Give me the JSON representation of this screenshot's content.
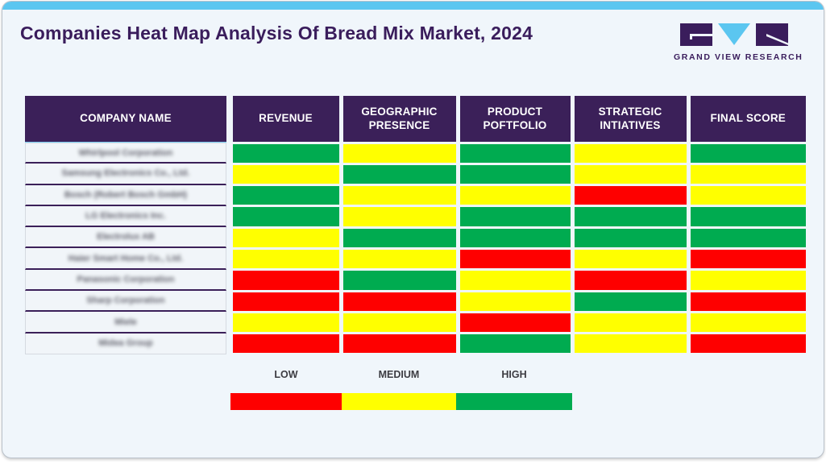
{
  "page": {
    "title": "Companies Heat Map Analysis Of Bread Mix Market, 2024"
  },
  "logo": {
    "brand": "GRAND VIEW RESEARCH"
  },
  "colors": {
    "low": "#fe0000",
    "medium": "#ffff00",
    "high": "#00ab50",
    "header_bg": "#3b2059",
    "accent_blue": "#5bc6f0",
    "brand_purple": "#3a1d5c"
  },
  "table": {
    "columns": [
      "COMPANY NAME",
      "REVENUE",
      "GEOGRAPHIC PRESENCE",
      "PRODUCT POFTFOLIO",
      "STRATEGIC INTIATIVES",
      "FINAL SCORE"
    ],
    "rows": [
      {
        "company": "Whirlpool Corporation",
        "ratings": [
          "high",
          "medium",
          "high",
          "medium",
          "high"
        ]
      },
      {
        "company": "Samsung Electronics Co., Ltd.",
        "ratings": [
          "medium",
          "high",
          "high",
          "medium",
          "medium"
        ]
      },
      {
        "company": "Bosch (Robert Bosch GmbH)",
        "ratings": [
          "high",
          "medium",
          "medium",
          "low",
          "medium"
        ]
      },
      {
        "company": "LG Electronics Inc.",
        "ratings": [
          "high",
          "medium",
          "high",
          "high",
          "high"
        ]
      },
      {
        "company": "Electrolux AB",
        "ratings": [
          "medium",
          "high",
          "high",
          "high",
          "high"
        ]
      },
      {
        "company": "Haier Smart Home Co., Ltd.",
        "ratings": [
          "medium",
          "medium",
          "low",
          "medium",
          "low"
        ]
      },
      {
        "company": "Panasonic Corporation",
        "ratings": [
          "low",
          "high",
          "medium",
          "low",
          "medium"
        ]
      },
      {
        "company": "Sharp Corporation",
        "ratings": [
          "low",
          "low",
          "medium",
          "high",
          "low"
        ]
      },
      {
        "company": "Miele",
        "ratings": [
          "medium",
          "medium",
          "low",
          "medium",
          "medium"
        ]
      },
      {
        "company": "Midea Group",
        "ratings": [
          "low",
          "low",
          "high",
          "medium",
          "low"
        ]
      }
    ]
  },
  "legend": {
    "items": [
      {
        "label": "LOW",
        "color": "#fe0000"
      },
      {
        "label": "MEDIUM",
        "color": "#ffff00"
      },
      {
        "label": "HIGH",
        "color": "#00ab50"
      }
    ]
  },
  "chart_data": {
    "type": "heatmap",
    "title": "Companies Heat Map Analysis Of Bread Mix Market, 2024",
    "columns": [
      "REVENUE",
      "GEOGRAPHIC PRESENCE",
      "PRODUCT POFTFOLIO",
      "STRATEGIC INTIATIVES",
      "FINAL SCORE"
    ],
    "rows": [
      "Whirlpool Corporation",
      "Samsung Electronics Co., Ltd.",
      "Bosch (Robert Bosch GmbH)",
      "LG Electronics Inc.",
      "Electrolux AB",
      "Haier Smart Home Co., Ltd.",
      "Panasonic Corporation",
      "Sharp Corporation",
      "Miele",
      "Midea Group"
    ],
    "values": [
      [
        "high",
        "medium",
        "high",
        "medium",
        "high"
      ],
      [
        "medium",
        "high",
        "high",
        "medium",
        "medium"
      ],
      [
        "high",
        "medium",
        "medium",
        "low",
        "medium"
      ],
      [
        "high",
        "medium",
        "high",
        "high",
        "high"
      ],
      [
        "medium",
        "high",
        "high",
        "high",
        "high"
      ],
      [
        "medium",
        "medium",
        "low",
        "medium",
        "low"
      ],
      [
        "low",
        "high",
        "medium",
        "low",
        "medium"
      ],
      [
        "low",
        "low",
        "medium",
        "high",
        "low"
      ],
      [
        "medium",
        "medium",
        "low",
        "medium",
        "medium"
      ],
      [
        "low",
        "low",
        "high",
        "medium",
        "low"
      ]
    ],
    "scale": {
      "low": "#fe0000",
      "medium": "#ffff00",
      "high": "#00ab50"
    },
    "legend_position": "bottom"
  }
}
